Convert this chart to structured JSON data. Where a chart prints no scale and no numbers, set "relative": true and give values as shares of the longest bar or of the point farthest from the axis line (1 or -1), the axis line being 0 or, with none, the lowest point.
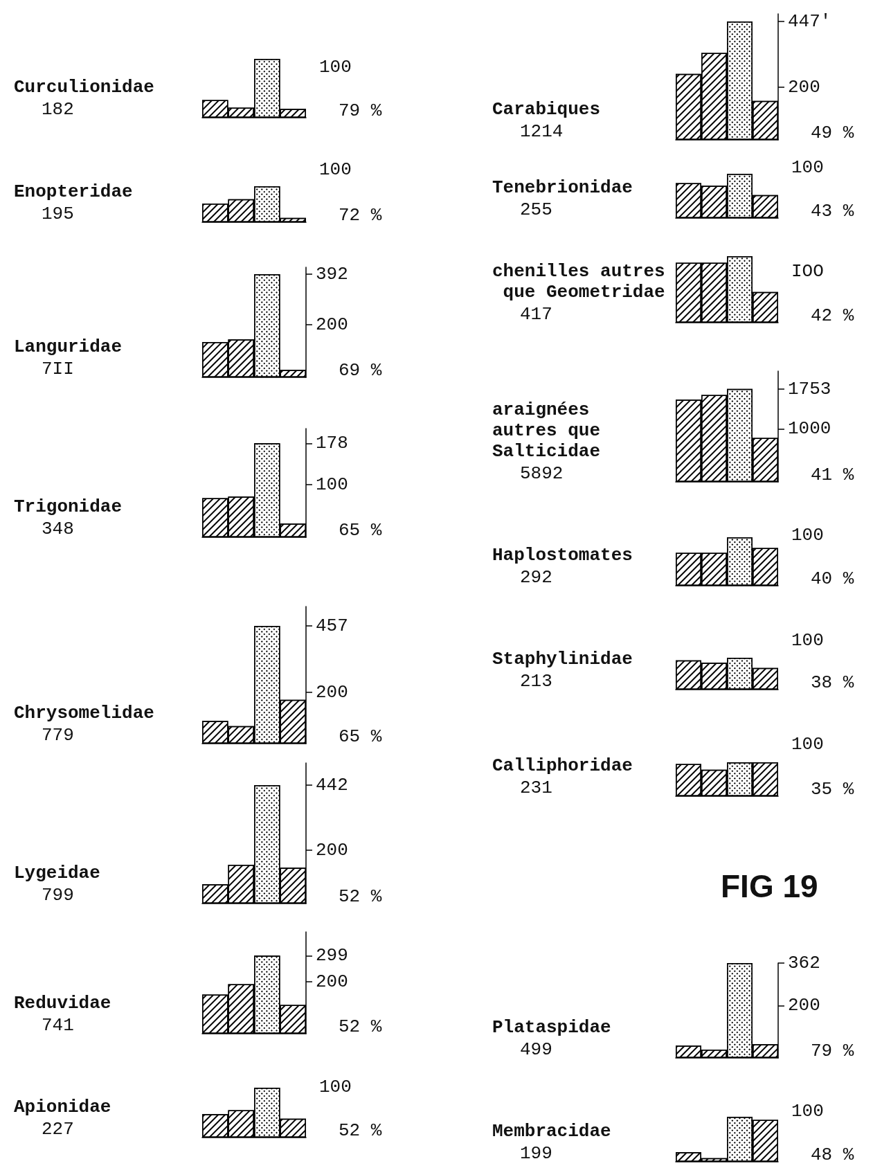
{
  "chart_data": [
    {
      "type": "bar",
      "title": "Curculionidae",
      "categories": [
        null,
        null,
        null,
        null
      ],
      "values": [
        0.3,
        0.17,
        1,
        0.15
      ],
      "relative": true,
      "color": "#000000",
      "annotations": [
        "182",
        "100",
        "79 %"
      ]
    },
    {
      "type": "bar",
      "title": "Enopteridae",
      "categories": [
        null,
        null,
        null,
        null
      ],
      "values": [
        0.52,
        0.64,
        1,
        0.12
      ],
      "relative": true,
      "color": "#000000",
      "annotations": [
        "195",
        "100",
        "72 %"
      ]
    },
    {
      "type": "bar",
      "title": "Languridae",
      "categories": [
        null,
        null,
        null,
        null
      ],
      "values": [
        134,
        144,
        392,
        28
      ],
      "color": "#000000",
      "ylim": [
        0,
        418
      ],
      "yticks": [
        200,
        392
      ],
      "annotations": [
        "7II",
        "69 %"
      ]
    },
    {
      "type": "bar",
      "title": "Trigonidae",
      "categories": [
        null,
        null,
        null,
        null
      ],
      "values": [
        74,
        77,
        178,
        26
      ],
      "color": "#000000",
      "ylim": [
        0,
        206
      ],
      "yticks": [
        100,
        178
      ],
      "annotations": [
        "348",
        "65 %"
      ]
    },
    {
      "type": "bar",
      "title": "Chrysomelidae",
      "categories": [
        null,
        null,
        null,
        null
      ],
      "values": [
        88,
        68,
        457,
        170
      ],
      "color": "#000000",
      "ylim": [
        0,
        532
      ],
      "yticks": [
        200,
        457
      ],
      "annotations": [
        "779",
        "65 %"
      ]
    },
    {
      "type": "bar",
      "title": "Lygeidae",
      "categories": [
        null,
        null,
        null,
        null
      ],
      "values": [
        72,
        145,
        442,
        134
      ],
      "color": "#000000",
      "ylim": [
        0,
        525
      ],
      "yticks": [
        200,
        442
      ],
      "annotations": [
        "799",
        "52 %"
      ]
    },
    {
      "type": "bar",
      "title": "Reduvidae",
      "categories": [
        null,
        null,
        null,
        null
      ],
      "values": [
        150,
        190,
        299,
        110
      ],
      "color": "#000000",
      "ylim": [
        0,
        390
      ],
      "yticks": [
        200,
        299
      ],
      "annotations": [
        "741",
        "52 %"
      ]
    },
    {
      "type": "bar",
      "title": "Apionidae",
      "categories": [
        null,
        null,
        null,
        null
      ],
      "values": [
        0.47,
        0.55,
        1,
        0.38
      ],
      "relative": true,
      "color": "#000000",
      "annotations": [
        "227",
        "100",
        "52 %"
      ]
    },
    {
      "type": "bar",
      "title": "Carabiques",
      "categories": [
        null,
        null,
        null,
        null
      ],
      "values": [
        249,
        328,
        447,
        147
      ],
      "color": "#000000",
      "ylim": [
        0,
        476
      ],
      "yticks": [
        200,
        {
          "value": 447,
          "label": "447'"
        }
      ],
      "annotations": [
        "1214",
        "49 %"
      ]
    },
    {
      "type": "bar",
      "title": "Tenebrionidae",
      "categories": [
        null,
        null,
        null,
        null
      ],
      "values": [
        0.79,
        0.73,
        1,
        0.52
      ],
      "relative": true,
      "color": "#000000",
      "annotations": [
        "255",
        "100",
        "43 %"
      ]
    },
    {
      "type": "bar",
      "title": "chenilles autres que Geometridae",
      "categories": [
        null,
        null,
        null,
        null
      ],
      "values": [
        0.9,
        0.9,
        1,
        0.46
      ],
      "relative": true,
      "color": "#000000",
      "annotations": [
        "417",
        "IOO",
        "42 %"
      ]
    },
    {
      "type": "bar",
      "title": "araignées autres que Salticidae",
      "categories": [
        null,
        null,
        null,
        null
      ],
      "values": [
        1550,
        1640,
        1753,
        830
      ],
      "color": "#000000",
      "ylim": [
        0,
        2090
      ],
      "yticks": [
        1000,
        1753
      ],
      "annotations": [
        "5892",
        "41 %"
      ]
    },
    {
      "type": "bar",
      "title": "Haplostomates",
      "categories": [
        null,
        null,
        null,
        null
      ],
      "values": [
        0.68,
        0.68,
        1,
        0.78
      ],
      "relative": true,
      "color": "#000000",
      "annotations": [
        "292",
        "100",
        "40 %"
      ]
    },
    {
      "type": "bar",
      "title": "Staphylinidae",
      "categories": [
        null,
        null,
        null,
        null
      ],
      "values": [
        0.92,
        0.84,
        1,
        0.68
      ],
      "relative": true,
      "color": "#000000",
      "annotations": [
        "213",
        "100",
        "38 %"
      ]
    },
    {
      "type": "bar",
      "title": "Calliphoridae",
      "categories": [
        null,
        null,
        null,
        null
      ],
      "values": [
        0.95,
        0.78,
        1,
        1
      ],
      "relative": true,
      "color": "#000000",
      "annotations": [
        "231",
        "100",
        "35 %"
      ]
    },
    {
      "type": "other",
      "title": "FIG 19"
    },
    {
      "type": "bar",
      "title": "Plataspidae",
      "categories": [
        null,
        null,
        null,
        null
      ],
      "values": [
        47,
        32,
        362,
        52
      ],
      "color": "#000000",
      "ylim": [
        0,
        362
      ],
      "yticks": [
        200,
        362
      ],
      "annotations": [
        "499",
        "79 %"
      ]
    },
    {
      "type": "bar",
      "title": "Membracidae",
      "categories": [
        null,
        null,
        null,
        null
      ],
      "values": [
        0.21,
        0.08,
        1,
        0.93
      ],
      "relative": true,
      "color": "#000000",
      "annotations": [
        "199",
        "100",
        "48 %"
      ]
    }
  ]
}
